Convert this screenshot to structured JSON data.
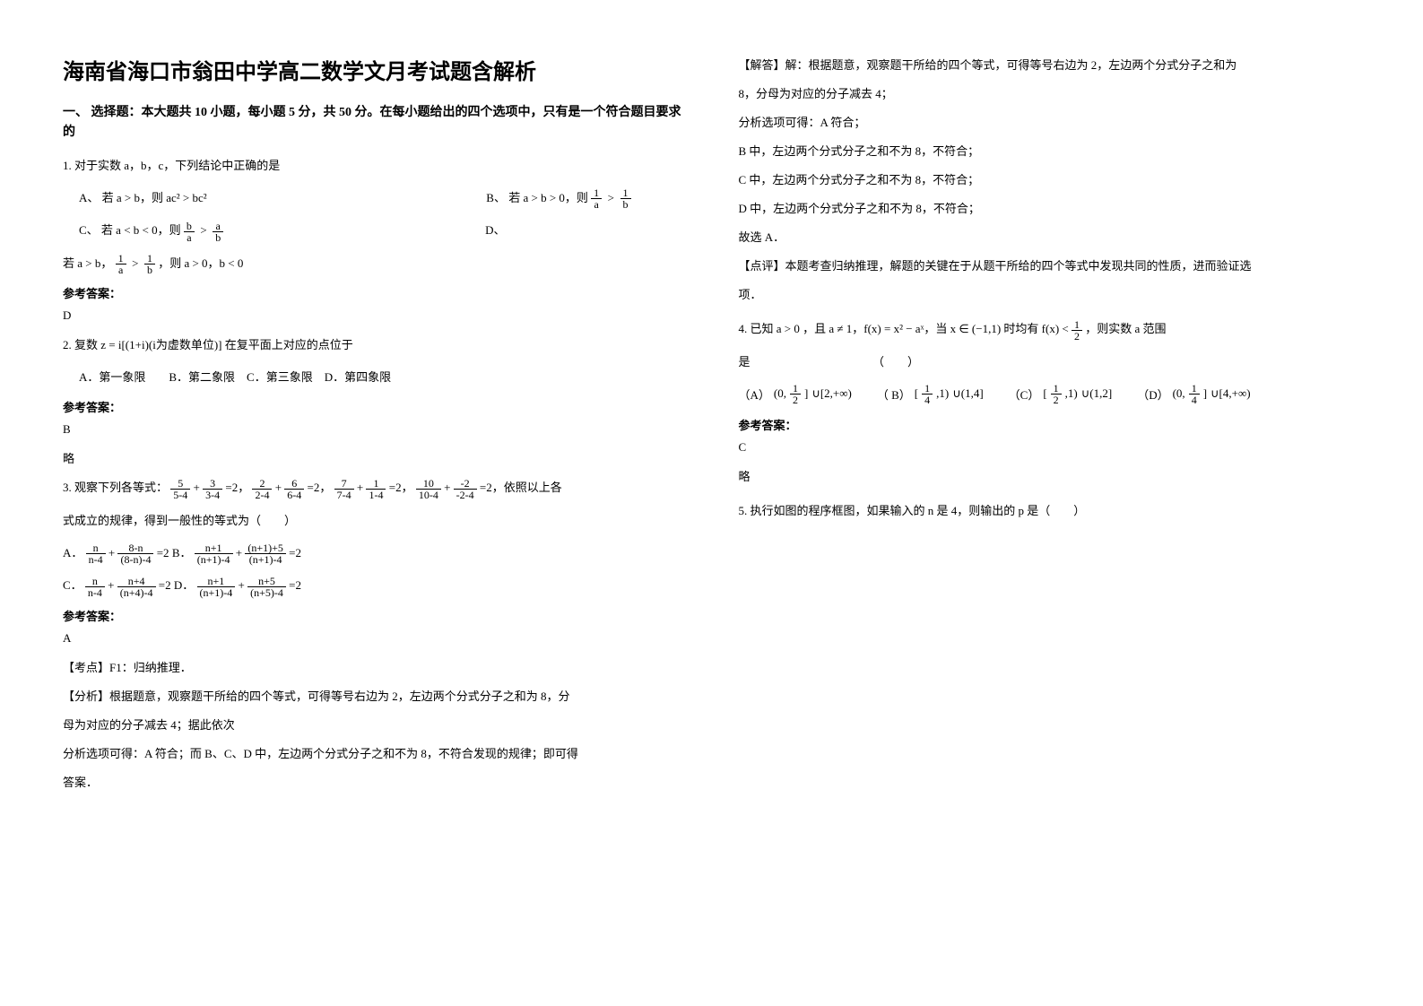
{
  "title": "海南省海口市翁田中学高二数学文月考试题含解析",
  "section1": "一、 选择题：本大题共 10 小题，每小题 5 分，共 50 分。在每小题给出的四个选项中，只有是一个符合题目要求的",
  "q1": {
    "stem": "1. 对于实数 a，b，c，下列结论中正确的是",
    "A_pre": "A、",
    "A_text": "若 a > b，则 ac² > bc²",
    "B_pre": "B、",
    "B_text_pre": "若 a > b > 0，则 ",
    "C_pre": "C、",
    "C_text_pre": "若 a < b < 0，则 ",
    "D_pre": "D、",
    "D_text": "若 a > b，",
    "D_text2": "，则 a > 0，b < 0",
    "ans_label": "参考答案：",
    "ans": "D"
  },
  "q2": {
    "stem_pre": "2. 复数 ",
    "stem_mid": "z = i[(1+i)(i为虚数单位)] ",
    "stem_post": "在复平面上对应的点位于",
    "choices": "A．第一象限　　B．第二象限　C．第三象限　D．第四象限",
    "ans_label": "参考答案：",
    "ans": "B",
    "summary": "略"
  },
  "q3": {
    "stem_pre": "3. 观察下列各等式：",
    "eq_tail": "=2，依照以上各",
    "stem_line2": "式成立的规律，得到一般性的等式为（　　）",
    "A_label": "A．",
    "A_mid": " + ",
    "A_eq": " =2",
    "B_label": "B．",
    "B_eq": " =2",
    "C_label": "C．",
    "C_mid": " + ",
    "C_eq": " =2",
    "D_label": "D．",
    "D_eq": " =2",
    "ans_label": "参考答案：",
    "ans": "A",
    "point": "【考点】F1：归纳推理．",
    "analysis1": "【分析】根据题意，观察题干所给的四个等式，可得等号右边为 2，左边两个分式分子之和为 8，分",
    "analysis2": "母为对应的分子减去 4；据此依次",
    "analysis3": "分析选项可得：A 符合；而 B、C、D 中，左边两个分式分子之和不为 8，不符合发现的规律；即可得",
    "analysis4": "答案．"
  },
  "right": {
    "solve1": "【解答】解：根据题意，观察题干所给的四个等式，可得等号右边为 2，左边两个分式分子之和为",
    "solve2": "8，分母为对应的分子减去 4；",
    "solve3": "分析选项可得：A 符合；",
    "solve4": "B 中，左边两个分式分子之和不为 8，不符合；",
    "solve5": "C 中，左边两个分式分子之和不为 8，不符合；",
    "solve6": "D 中，左边两个分式分子之和不为 8，不符合；",
    "solve7": "故选 A．",
    "comment1": "【点评】本题考查归纳推理，解题的关键在于从题干所给的四个等式中发现共同的性质，进而验证选",
    "comment2": "项．"
  },
  "q4": {
    "pre": "4. 已知 a > 0 ，且 a ≠ 1，f(x) = x² − aˣ，当 x ∈ (−1,1) 时均有 ",
    "post": "，则实数 a 范围",
    "line2": "是　　　　　　　　　　　（　　）",
    "pA": "（A）",
    "pB": "（ B）",
    "pC": "（C）",
    "pD": "（D）",
    "A_tail": "∪[2,+∞)",
    "B_tail": "∪(1,4]",
    "C_tail": "∪(1,2]",
    "D_tail": "∪[4,+∞)",
    "ans_label": "参考答案：",
    "ans": "C",
    "summary": "略"
  },
  "q5": {
    "stem": "5. 执行如图的程序框图，如果输入的 n 是 4，则输出的 p 是（　　）"
  },
  "frac_text": {
    "one": "1",
    "a": "a",
    "b": "b",
    "five": "5",
    "m54": "5-4",
    "three": "3",
    "m34": "3-4",
    "two": "2",
    "m24": "2-4",
    "six": "6",
    "m64": "6-4",
    "seven": "7",
    "m74": "7-4",
    "m14": "1-4",
    "ten": "10",
    "m104": "10-4",
    "mneg2": "-2",
    "mneg24": "-2-4",
    "n": "n",
    "nm4": "n-4",
    "8mn": "8-n",
    "8mn4": "(8-n)-4",
    "np1": "n+1",
    "np1m4": "(n+1)-4",
    "np1p5": "(n+1)+5",
    "np4": "n+4",
    "np4m4": "(n+4)-4",
    "np5": "n+5",
    "np5m4": "(n+5)-4",
    "half_num": "1",
    "half_den": "2",
    "quarter_num": "1",
    "quarter_den": "4",
    "fx": "f(x) < ",
    "half": "1",
    "half2": "2"
  }
}
